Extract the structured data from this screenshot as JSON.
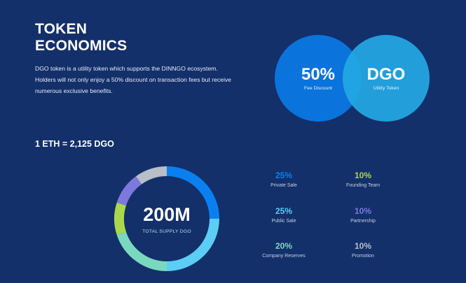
{
  "header": {
    "title_line1": "TOKEN",
    "title_line2": "ECONOMICS",
    "description": "DGO token is a utility token which supports the DINNGO ecosystem. Holders will not only enjoy a 50% discount on transaction fees but receive numerous exclusive benefits."
  },
  "circles": {
    "left": {
      "value": "50%",
      "label": "Fee Discount",
      "color": "#0b73dc"
    },
    "right": {
      "value": "DGO",
      "label": "Utility Token",
      "color": "#24a8e4"
    }
  },
  "rate": "1 ETH = 2,125 DGO",
  "supply": {
    "value": "200M",
    "label": "TOTAL SUPPLY DGO"
  },
  "allocation": [
    {
      "pct": "25%",
      "name": "Private Sale",
      "share": 25,
      "color": "#0a80f0"
    },
    {
      "pct": "25%",
      "name": "Public Sale",
      "share": 25,
      "color": "#5ccdf5"
    },
    {
      "pct": "20%",
      "name": "Company Reserves",
      "share": 20,
      "color": "#7ad8be"
    },
    {
      "pct": "10%",
      "name": "Founding Team",
      "share": 10,
      "color": "#a9d84c"
    },
    {
      "pct": "10%",
      "name": "Partnership",
      "share": 10,
      "color": "#7d78de"
    },
    {
      "pct": "10%",
      "name": "Promotion",
      "share": 10,
      "color": "#b9bec7"
    }
  ]
}
